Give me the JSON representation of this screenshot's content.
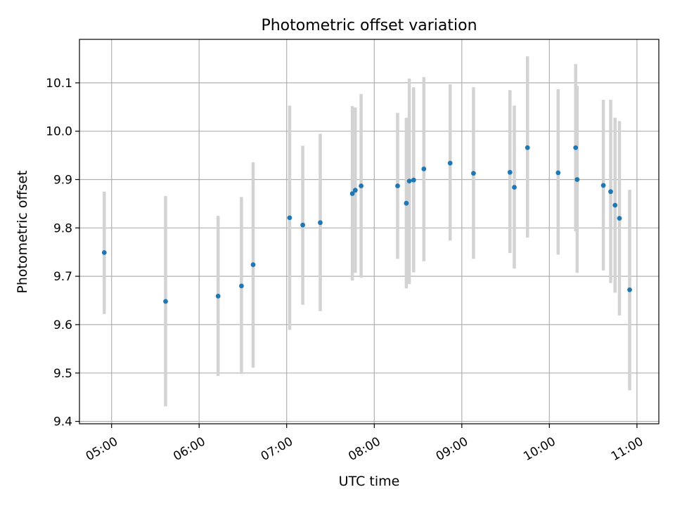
{
  "chart_data": {
    "type": "scatter",
    "title": "Photometric offset variation",
    "xlabel": "UTC time",
    "ylabel": "Photometric offset",
    "xlim": [
      "04:38",
      "11:15"
    ],
    "ylim": [
      9.395,
      10.19
    ],
    "x_ticks": [
      "05:00",
      "06:00",
      "07:00",
      "08:00",
      "09:00",
      "10:00",
      "11:00"
    ],
    "y_ticks": [
      9.4,
      9.5,
      9.6,
      9.7,
      9.8,
      9.9,
      10.0,
      10.1
    ],
    "y_tick_labels": [
      "9.4",
      "9.5",
      "9.6",
      "9.7",
      "9.8",
      "9.9",
      "10.0",
      "10.1"
    ],
    "grid": true,
    "colors": {
      "points": "#1f77b4",
      "errorbars": "#d3d3d3"
    },
    "series": [
      {
        "points": [
          {
            "x": "04:55",
            "y": 9.749,
            "ymin": 9.622,
            "ymax": 9.875
          },
          {
            "x": "05:37",
            "y": 9.648,
            "ymin": 9.431,
            "ymax": 9.866
          },
          {
            "x": "06:13",
            "y": 9.659,
            "ymin": 9.494,
            "ymax": 9.825
          },
          {
            "x": "06:29",
            "y": 9.68,
            "ymin": 9.498,
            "ymax": 9.864
          },
          {
            "x": "06:37",
            "y": 9.724,
            "ymin": 9.511,
            "ymax": 9.936
          },
          {
            "x": "07:02",
            "y": 9.821,
            "ymin": 9.589,
            "ymax": 10.053
          },
          {
            "x": "07:11",
            "y": 9.806,
            "ymin": 9.641,
            "ymax": 9.97
          },
          {
            "x": "07:23",
            "y": 9.811,
            "ymin": 9.628,
            "ymax": 9.995
          },
          {
            "x": "07:45",
            "y": 9.871,
            "ymin": 9.691,
            "ymax": 10.052
          },
          {
            "x": "07:47",
            "y": 9.878,
            "ymin": 9.707,
            "ymax": 10.049
          },
          {
            "x": "07:51",
            "y": 9.887,
            "ymin": 9.697,
            "ymax": 10.077
          },
          {
            "x": "08:16",
            "y": 9.887,
            "ymin": 9.736,
            "ymax": 10.038
          },
          {
            "x": "08:22",
            "y": 9.851,
            "ymin": 9.675,
            "ymax": 10.028
          },
          {
            "x": "08:24",
            "y": 9.897,
            "ymin": 9.684,
            "ymax": 10.109
          },
          {
            "x": "08:27",
            "y": 9.899,
            "ymin": 9.708,
            "ymax": 10.091
          },
          {
            "x": "08:34",
            "y": 9.922,
            "ymin": 9.731,
            "ymax": 10.112
          },
          {
            "x": "08:52",
            "y": 9.934,
            "ymin": 9.774,
            "ymax": 10.097
          },
          {
            "x": "09:08",
            "y": 9.913,
            "ymin": 9.736,
            "ymax": 10.091
          },
          {
            "x": "09:33",
            "y": 9.915,
            "ymin": 9.748,
            "ymax": 10.085
          },
          {
            "x": "09:36",
            "y": 9.884,
            "ymin": 9.716,
            "ymax": 10.053
          },
          {
            "x": "09:45",
            "y": 9.966,
            "ymin": 9.78,
            "ymax": 10.155
          },
          {
            "x": "10:06",
            "y": 9.914,
            "ymin": 9.745,
            "ymax": 10.087
          },
          {
            "x": "10:18",
            "y": 9.966,
            "ymin": 9.793,
            "ymax": 10.139
          },
          {
            "x": "10:19",
            "y": 9.9,
            "ymin": 9.707,
            "ymax": 10.094
          },
          {
            "x": "10:37",
            "y": 9.888,
            "ymin": 9.712,
            "ymax": 10.065
          },
          {
            "x": "10:42",
            "y": 9.875,
            "ymin": 9.686,
            "ymax": 10.065
          },
          {
            "x": "10:45",
            "y": 9.847,
            "ymin": 9.666,
            "ymax": 10.028
          },
          {
            "x": "10:48",
            "y": 9.82,
            "ymin": 9.619,
            "ymax": 10.021
          },
          {
            "x": "10:55",
            "y": 9.672,
            "ymin": 9.464,
            "ymax": 9.879
          }
        ]
      }
    ]
  }
}
